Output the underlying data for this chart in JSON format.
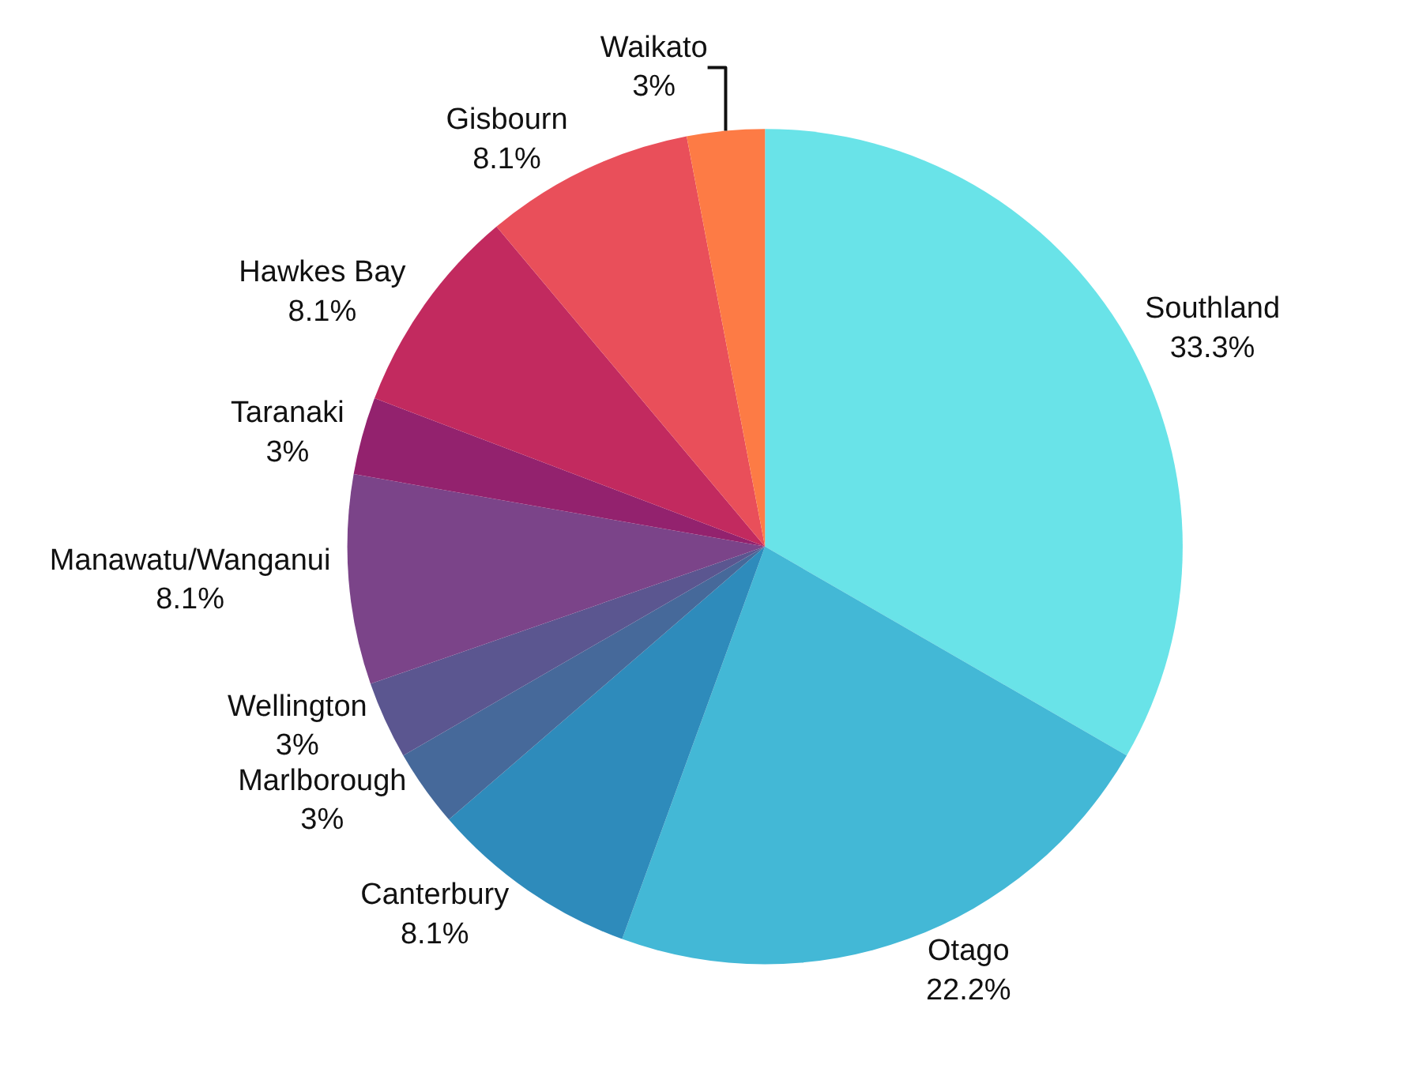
{
  "chart_data": {
    "type": "pie",
    "categories": [
      "Southland",
      "Otago",
      "Canterbury",
      "Marlborough",
      "Wellington",
      "Manawatu/Wanganui",
      "Taranaki",
      "Hawkes Bay",
      "Gisbourn",
      "Waikato"
    ],
    "values": [
      33.3,
      22.2,
      8.1,
      3,
      3,
      8.1,
      3,
      8.1,
      8.1,
      3
    ],
    "value_labels": [
      "33.3%",
      "22.2%",
      "8.1%",
      "3%",
      "3%",
      "8.1%",
      "3%",
      "8.1%",
      "8.1%",
      "3%"
    ],
    "colors": [
      "#69e3e8",
      "#43b8d6",
      "#2e8bbb",
      "#46699a",
      "#5b5690",
      "#7b4489",
      "#93226e",
      "#c22a5f",
      "#e94f5a",
      "#fd7b45"
    ],
    "legend": false
  }
}
